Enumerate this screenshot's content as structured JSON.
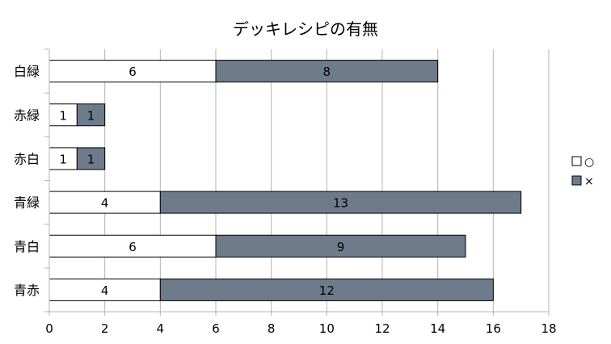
{
  "chart_data": {
    "type": "bar",
    "orientation": "horizontal",
    "stacked": true,
    "title": "デッキレシピの有無",
    "categories": [
      "白緑",
      "赤緑",
      "赤白",
      "青緑",
      "青白",
      "青赤"
    ],
    "series": [
      {
        "name": "○",
        "values": [
          6,
          1,
          1,
          4,
          6,
          4
        ],
        "color": "#ffffff"
      },
      {
        "name": "×",
        "values": [
          8,
          1,
          1,
          13,
          9,
          12
        ],
        "color": "#6e7b8b"
      }
    ],
    "xlim": [
      0,
      18
    ],
    "xticks": [
      0,
      2,
      4,
      6,
      8,
      10,
      12,
      14,
      16,
      18
    ],
    "grid": true,
    "legend_position": "right",
    "xlabel": "",
    "ylabel": ""
  }
}
